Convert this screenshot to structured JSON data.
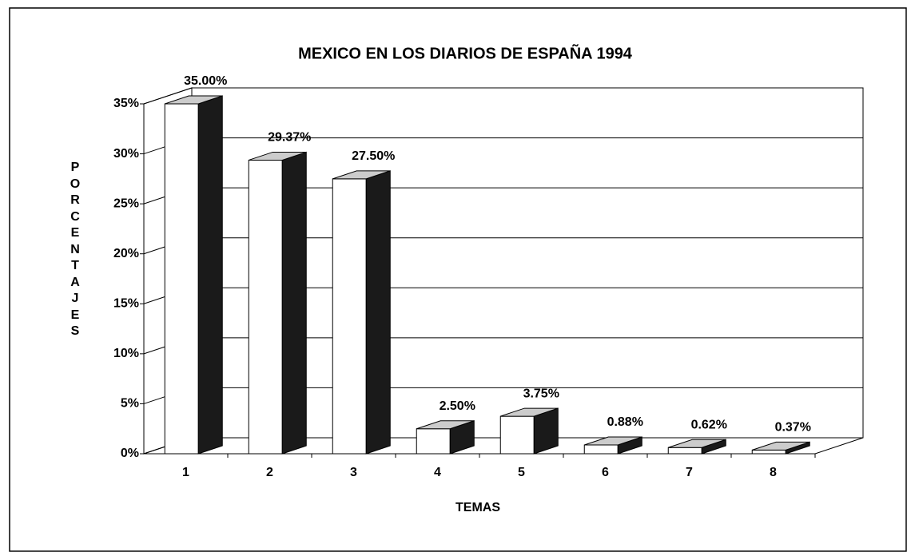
{
  "chart_data": {
    "type": "bar3d",
    "title": "MEXICO EN LOS DIARIOS DE ESPAÑA 1994",
    "x_label": "TEMAS",
    "y_label": "PORCENTAJES",
    "categories": [
      "1",
      "2",
      "3",
      "4",
      "5",
      "6",
      "7",
      "8"
    ],
    "values": [
      35.0,
      29.37,
      27.5,
      2.5,
      3.75,
      0.88,
      0.62,
      0.37
    ],
    "value_labels": [
      "35.00%",
      "29.37%",
      "27.50%",
      "2.50%",
      "3.75%",
      "0.88%",
      "0.62%",
      "0.37%"
    ],
    "color": "#1a1a1a",
    "ylim": [
      0,
      35
    ],
    "yticks": [
      {
        "value": 0,
        "label": "0%"
      },
      {
        "value": 5,
        "label": "5%"
      },
      {
        "value": 10,
        "label": "10%"
      },
      {
        "value": 15,
        "label": "15%"
      },
      {
        "value": 20,
        "label": "20%"
      },
      {
        "value": 25,
        "label": "25%"
      },
      {
        "value": 30,
        "label": "30%"
      },
      {
        "value": 35,
        "label": "35%"
      }
    ],
    "grid": true
  }
}
